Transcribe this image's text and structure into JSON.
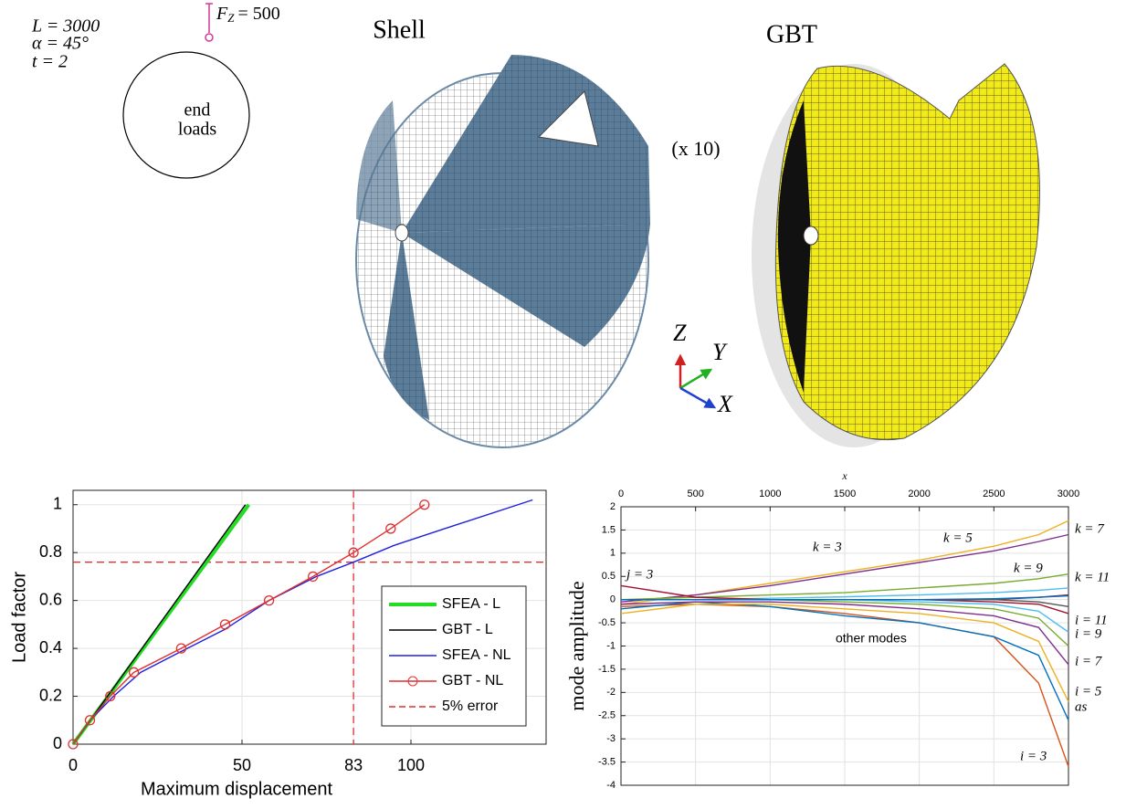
{
  "figure": {
    "params": [
      "L = 3000",
      "α = 45°",
      "t = 2"
    ],
    "force": {
      "symbol": "F",
      "subscript": "Z",
      "rest": "= 500"
    },
    "circle_label": [
      "end",
      "loads"
    ],
    "titles": [
      "Shell",
      "GBT"
    ],
    "scale_note": "(x 10)",
    "triad": [
      "Z",
      "Y",
      "X"
    ]
  },
  "chart_data": [
    {
      "type": "line",
      "x_label": "Maximum displacement",
      "y_label": "Load factor",
      "xlim": [
        0,
        140
      ],
      "ylim": [
        0,
        1.06
      ],
      "xticks": [
        0,
        50,
        83,
        100
      ],
      "yticks": [
        0,
        0.2,
        0.4,
        0.6,
        0.8,
        1
      ],
      "grid": true,
      "legend": "lower right",
      "series": [
        {
          "name": "SFEA - L",
          "color": "#22dd22",
          "x": [
            0,
            52
          ],
          "values": [
            0,
            1
          ]
        },
        {
          "name": "GBT - L",
          "color": "#000000",
          "x": [
            0,
            51
          ],
          "values": [
            0,
            1
          ]
        },
        {
          "name": "SFEA - NL",
          "color": "#2020e0",
          "x": [
            0,
            5,
            12,
            20,
            31,
            45,
            58,
            72,
            83,
            95,
            110,
            136
          ],
          "values": [
            0,
            0.1,
            0.2,
            0.3,
            0.38,
            0.48,
            0.6,
            0.7,
            0.76,
            0.83,
            0.9,
            1.02
          ]
        },
        {
          "name": "GBT - NL",
          "color": "#e03030",
          "marker": "o",
          "x": [
            0,
            5,
            11,
            18,
            32,
            45,
            58,
            71,
            83,
            94,
            104
          ],
          "values": [
            0,
            0.1,
            0.2,
            0.3,
            0.4,
            0.5,
            0.6,
            0.7,
            0.8,
            0.9,
            1
          ]
        }
      ],
      "reference": {
        "name": "5% error",
        "color": "#e03030",
        "x": 83,
        "y": 0.76
      }
    },
    {
      "type": "line",
      "x_label": "x",
      "y_label": "mode amplitude",
      "xlim": [
        0,
        3000
      ],
      "ylim": [
        -4,
        2
      ],
      "xticks": [
        0,
        500,
        1000,
        1500,
        2000,
        2500,
        3000
      ],
      "yticks": [
        2,
        1.5,
        1,
        0.5,
        0,
        -0.5,
        -1,
        -1.5,
        -2,
        -2.5,
        -3,
        -3.5,
        -4
      ],
      "grid": true,
      "x": [
        0,
        500,
        1000,
        1500,
        2000,
        2500,
        2800,
        3000
      ],
      "series": [
        {
          "color": "#edb120",
          "values": [
            -0.1,
            0.1,
            0.35,
            0.6,
            0.85,
            1.15,
            1.4,
            1.7
          ]
        },
        {
          "color": "#7e2f8e",
          "values": [
            -0.05,
            0.1,
            0.3,
            0.55,
            0.8,
            1.05,
            1.25,
            1.4
          ]
        },
        {
          "color": "#77ac30",
          "values": [
            0,
            0.05,
            0.1,
            0.15,
            0.25,
            0.35,
            0.45,
            0.55
          ]
        },
        {
          "color": "#4dbeee",
          "values": [
            0,
            0,
            0.03,
            0.06,
            0.1,
            0.15,
            0.2,
            0.25
          ]
        },
        {
          "color": "#a2142f",
          "values": [
            0.3,
            0.05,
            0,
            0,
            0,
            0,
            0.05,
            0.1
          ]
        },
        {
          "color": "#d95319",
          "values": [
            -0.15,
            -0.1,
            -0.15,
            -0.3,
            -0.5,
            -0.8,
            -1.8,
            -3.6
          ]
        },
        {
          "color": "#0072bd",
          "values": [
            -0.2,
            -0.05,
            -0.15,
            -0.35,
            -0.5,
            -0.8,
            -1.2,
            -2.6
          ]
        },
        {
          "color": "#edb120",
          "values": [
            -0.3,
            -0.1,
            -0.1,
            -0.2,
            -0.3,
            -0.5,
            -0.9,
            -2.2
          ]
        },
        {
          "color": "#7e2f8e",
          "values": [
            -0.1,
            -0.05,
            -0.05,
            -0.1,
            -0.2,
            -0.35,
            -0.6,
            -1.4
          ]
        },
        {
          "color": "#77ac30",
          "values": [
            0,
            0,
            0,
            -0.05,
            -0.1,
            -0.2,
            -0.4,
            -1
          ]
        },
        {
          "color": "#4dbeee",
          "values": [
            0,
            0,
            0,
            0,
            -0.05,
            -0.1,
            -0.25,
            -0.7
          ]
        },
        {
          "color": "#a2142f",
          "values": [
            0,
            0,
            0,
            0,
            0,
            -0.05,
            -0.1,
            -0.3
          ]
        },
        {
          "color": "#555555",
          "values": [
            0,
            0,
            0,
            0,
            0,
            0,
            -0.05,
            -0.15
          ]
        },
        {
          "color": "#0072bd",
          "values": [
            0,
            0,
            0,
            0,
            0,
            0.02,
            0.05,
            0.08
          ]
        }
      ],
      "annotations": [
        "k = 3",
        "k = 5",
        "k = 7",
        "k = 9",
        "k = 11",
        "j = 3",
        "i = 11",
        "i = 9",
        "i = 7",
        "i = 5",
        "as",
        "i = 3",
        "other modes"
      ]
    }
  ]
}
